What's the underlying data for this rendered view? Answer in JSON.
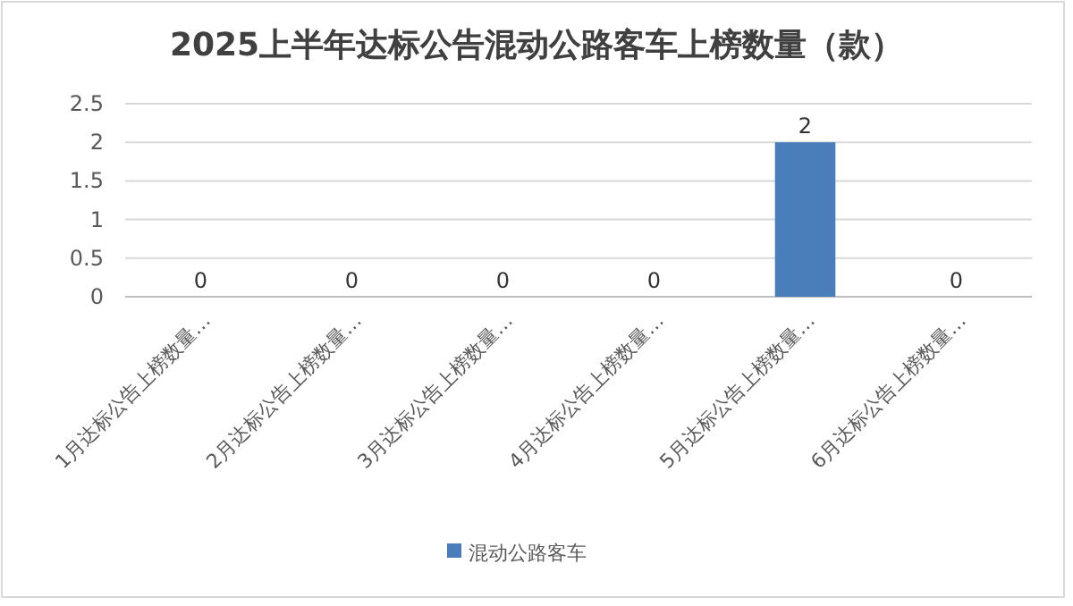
{
  "chart_data": {
    "type": "bar",
    "title": "2025上半年达标公告混动公路客车上榜数量（款）",
    "categories": [
      "1月达标公告上榜数量…",
      "2月达标公告上榜数量…",
      "3月达标公告上榜数量…",
      "4月达标公告上榜数量…",
      "5月达标公告上榜数量…",
      "6月达标公告上榜数量…"
    ],
    "series": [
      {
        "name": "混动公路客车",
        "color": "#4a7ebb",
        "values": [
          0,
          0,
          0,
          0,
          2,
          0
        ]
      }
    ],
    "ylim": [
      0,
      2.5
    ],
    "yticks": [
      0,
      0.5,
      1,
      1.5,
      2,
      2.5
    ],
    "grid": "y",
    "data_labels": true,
    "legend": "bottom"
  }
}
